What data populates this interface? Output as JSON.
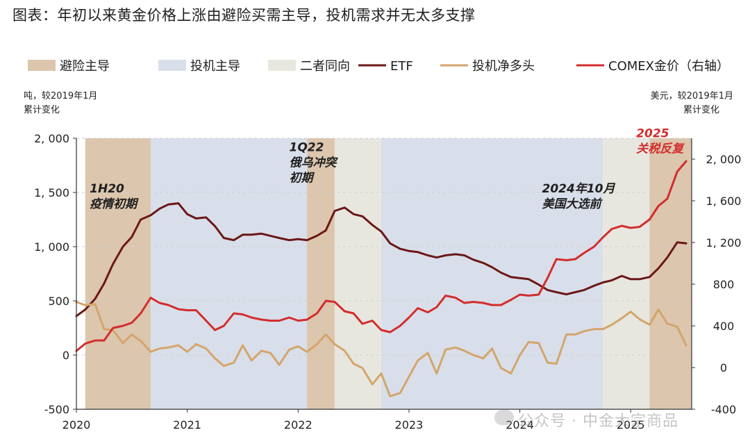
{
  "page_title": "图表：年初以来黄金价格上涨由避险买需主导，投机需求并无太多支撑",
  "watermark": "公众号 · 中金大宗商品",
  "colors": {
    "hedge_band": "#dcc6ad",
    "spec_band": "#d9dfea",
    "both_band": "#e8e7df",
    "etf": "#6b1717",
    "spec_net_long": "#d3a56c",
    "comex": "#d22d2d",
    "grid": "#cfcfcf",
    "axis": "#333333"
  },
  "chart_data": {
    "type": "line",
    "legend": {
      "position": "top",
      "items": [
        {
          "key": "hedge",
          "label": "避险主导",
          "kind": "band"
        },
        {
          "key": "spec",
          "label": "投机主导",
          "kind": "band"
        },
        {
          "key": "both",
          "label": "二者同向",
          "kind": "band"
        },
        {
          "key": "etf",
          "label": "ETF",
          "kind": "line"
        },
        {
          "key": "net_long",
          "label": "投机净多头",
          "kind": "line"
        },
        {
          "key": "comex",
          "label": "COMEX金价（右轴）",
          "kind": "line"
        }
      ]
    },
    "left_axis": {
      "label_line1": "吨，较2019年1月",
      "label_line2": "累计变化",
      "ylim": [
        -500,
        2000
      ],
      "ticks": [
        -500,
        0,
        500,
        1000,
        1500,
        2000
      ],
      "tick_labels": [
        "-500",
        "0",
        "500",
        "1, 000",
        "1, 500",
        "2, 000"
      ]
    },
    "right_axis": {
      "label_line1": "美元，较2019年1月",
      "label_line2": "累计变化",
      "ylim": [
        -400,
        2200
      ],
      "ticks": [
        -400,
        0,
        400,
        800,
        1200,
        1600,
        2000
      ],
      "tick_labels": [
        "-400",
        "0",
        "400",
        "800",
        "1, 200",
        "1, 600",
        "2, 000"
      ]
    },
    "x_axis": {
      "xlim": [
        2020.0,
        2025.55
      ],
      "ticks": [
        2020,
        2021,
        2022,
        2023,
        2024,
        2025
      ],
      "tick_labels": [
        "2020",
        "2021",
        "2022",
        "2023",
        "2024",
        "2025"
      ]
    },
    "grid": "horizontal dashed",
    "bands": [
      {
        "type": "hedge",
        "start": 2020.08,
        "end": 2020.67
      },
      {
        "type": "spec",
        "start": 2020.67,
        "end": 2022.08
      },
      {
        "type": "hedge",
        "start": 2022.08,
        "end": 2022.33
      },
      {
        "type": "both",
        "start": 2022.33,
        "end": 2022.75
      },
      {
        "type": "spec",
        "start": 2022.75,
        "end": 2024.75
      },
      {
        "type": "both",
        "start": 2024.75,
        "end": 2025.17
      },
      {
        "type": "hedge",
        "start": 2025.17,
        "end": 2025.55
      }
    ],
    "annotations": [
      {
        "lines": [
          "1H20",
          "疫情初期"
        ],
        "x": 2020.12,
        "y": 1500,
        "axis": "left",
        "color": "#1e1e1e"
      },
      {
        "lines": [
          "1Q22",
          "俄乌冲突",
          "初期"
        ],
        "x": 2021.92,
        "y": 1880,
        "axis": "left",
        "color": "#1e1e1e"
      },
      {
        "lines": [
          "2024年10月",
          "美国大选前"
        ],
        "x": 2024.2,
        "y": 1500,
        "axis": "left",
        "color": "#1e1e1e"
      },
      {
        "lines": [
          "2025",
          "关税反复"
        ],
        "x": 2025.05,
        "y": 2010,
        "axis": "left",
        "color": "#d22d2d"
      }
    ],
    "series": [
      {
        "name": "ETF",
        "axis": "left",
        "points": [
          [
            2020.0,
            360
          ],
          [
            2020.08,
            420
          ],
          [
            2020.17,
            520
          ],
          [
            2020.25,
            660
          ],
          [
            2020.33,
            840
          ],
          [
            2020.42,
            1000
          ],
          [
            2020.5,
            1090
          ],
          [
            2020.58,
            1250
          ],
          [
            2020.67,
            1290
          ],
          [
            2020.75,
            1350
          ],
          [
            2020.83,
            1390
          ],
          [
            2020.92,
            1400
          ],
          [
            2021.0,
            1300
          ],
          [
            2021.08,
            1260
          ],
          [
            2021.17,
            1270
          ],
          [
            2021.25,
            1190
          ],
          [
            2021.33,
            1080
          ],
          [
            2021.42,
            1060
          ],
          [
            2021.5,
            1110
          ],
          [
            2021.58,
            1110
          ],
          [
            2021.67,
            1120
          ],
          [
            2021.75,
            1100
          ],
          [
            2021.83,
            1080
          ],
          [
            2021.92,
            1060
          ],
          [
            2022.0,
            1070
          ],
          [
            2022.08,
            1060
          ],
          [
            2022.17,
            1100
          ],
          [
            2022.25,
            1150
          ],
          [
            2022.33,
            1330
          ],
          [
            2022.42,
            1360
          ],
          [
            2022.5,
            1300
          ],
          [
            2022.58,
            1280
          ],
          [
            2022.67,
            1200
          ],
          [
            2022.75,
            1140
          ],
          [
            2022.83,
            1030
          ],
          [
            2022.92,
            980
          ],
          [
            2023.0,
            960
          ],
          [
            2023.08,
            950
          ],
          [
            2023.17,
            920
          ],
          [
            2023.25,
            900
          ],
          [
            2023.33,
            920
          ],
          [
            2023.42,
            930
          ],
          [
            2023.5,
            920
          ],
          [
            2023.58,
            880
          ],
          [
            2023.67,
            850
          ],
          [
            2023.75,
            810
          ],
          [
            2023.83,
            760
          ],
          [
            2023.92,
            720
          ],
          [
            2024.0,
            710
          ],
          [
            2024.08,
            700
          ],
          [
            2024.17,
            650
          ],
          [
            2024.25,
            600
          ],
          [
            2024.33,
            580
          ],
          [
            2024.42,
            560
          ],
          [
            2024.5,
            580
          ],
          [
            2024.58,
            600
          ],
          [
            2024.67,
            640
          ],
          [
            2024.75,
            670
          ],
          [
            2024.83,
            690
          ],
          [
            2024.92,
            730
          ],
          [
            2025.0,
            700
          ],
          [
            2025.08,
            700
          ],
          [
            2025.17,
            720
          ],
          [
            2025.25,
            800
          ],
          [
            2025.33,
            900
          ],
          [
            2025.42,
            1040
          ],
          [
            2025.5,
            1030
          ]
        ]
      },
      {
        "name": "投机净多头",
        "axis": "left",
        "points": [
          [
            2020.0,
            490
          ],
          [
            2020.08,
            460
          ],
          [
            2020.17,
            470
          ],
          [
            2020.25,
            240
          ],
          [
            2020.33,
            230
          ],
          [
            2020.42,
            110
          ],
          [
            2020.5,
            190
          ],
          [
            2020.58,
            130
          ],
          [
            2020.67,
            30
          ],
          [
            2020.75,
            60
          ],
          [
            2020.83,
            70
          ],
          [
            2020.92,
            90
          ],
          [
            2021.0,
            30
          ],
          [
            2021.08,
            100
          ],
          [
            2021.17,
            60
          ],
          [
            2021.25,
            -30
          ],
          [
            2021.33,
            -100
          ],
          [
            2021.42,
            -70
          ],
          [
            2021.5,
            90
          ],
          [
            2021.58,
            -50
          ],
          [
            2021.67,
            40
          ],
          [
            2021.75,
            20
          ],
          [
            2021.83,
            -90
          ],
          [
            2021.92,
            50
          ],
          [
            2022.0,
            80
          ],
          [
            2022.08,
            30
          ],
          [
            2022.17,
            100
          ],
          [
            2022.25,
            190
          ],
          [
            2022.33,
            100
          ],
          [
            2022.42,
            40
          ],
          [
            2022.5,
            -80
          ],
          [
            2022.58,
            -120
          ],
          [
            2022.67,
            -270
          ],
          [
            2022.75,
            -170
          ],
          [
            2022.83,
            -380
          ],
          [
            2022.92,
            -350
          ],
          [
            2023.0,
            -200
          ],
          [
            2023.08,
            -50
          ],
          [
            2023.17,
            20
          ],
          [
            2023.25,
            -170
          ],
          [
            2023.33,
            50
          ],
          [
            2023.42,
            70
          ],
          [
            2023.5,
            40
          ],
          [
            2023.58,
            0
          ],
          [
            2023.67,
            -30
          ],
          [
            2023.75,
            60
          ],
          [
            2023.83,
            -120
          ],
          [
            2023.92,
            -170
          ],
          [
            2024.0,
            0
          ],
          [
            2024.08,
            120
          ],
          [
            2024.17,
            110
          ],
          [
            2024.25,
            -70
          ],
          [
            2024.33,
            -80
          ],
          [
            2024.42,
            190
          ],
          [
            2024.5,
            190
          ],
          [
            2024.58,
            220
          ],
          [
            2024.67,
            240
          ],
          [
            2024.75,
            240
          ],
          [
            2024.83,
            280
          ],
          [
            2024.92,
            340
          ],
          [
            2025.0,
            400
          ],
          [
            2025.08,
            330
          ],
          [
            2025.17,
            280
          ],
          [
            2025.25,
            420
          ],
          [
            2025.33,
            290
          ],
          [
            2025.42,
            260
          ],
          [
            2025.5,
            90
          ]
        ]
      },
      {
        "name": "COMEX金价（右轴）",
        "axis": "right",
        "points": [
          [
            2020.0,
            160
          ],
          [
            2020.08,
            230
          ],
          [
            2020.17,
            260
          ],
          [
            2020.25,
            260
          ],
          [
            2020.33,
            380
          ],
          [
            2020.42,
            400
          ],
          [
            2020.5,
            430
          ],
          [
            2020.58,
            520
          ],
          [
            2020.67,
            670
          ],
          [
            2020.75,
            620
          ],
          [
            2020.83,
            600
          ],
          [
            2020.92,
            560
          ],
          [
            2021.0,
            550
          ],
          [
            2021.08,
            550
          ],
          [
            2021.17,
            450
          ],
          [
            2021.25,
            360
          ],
          [
            2021.33,
            400
          ],
          [
            2021.42,
            520
          ],
          [
            2021.5,
            510
          ],
          [
            2021.58,
            480
          ],
          [
            2021.67,
            460
          ],
          [
            2021.75,
            450
          ],
          [
            2021.83,
            450
          ],
          [
            2021.92,
            480
          ],
          [
            2022.0,
            450
          ],
          [
            2022.08,
            460
          ],
          [
            2022.17,
            520
          ],
          [
            2022.25,
            640
          ],
          [
            2022.33,
            630
          ],
          [
            2022.42,
            540
          ],
          [
            2022.5,
            520
          ],
          [
            2022.58,
            420
          ],
          [
            2022.67,
            450
          ],
          [
            2022.75,
            360
          ],
          [
            2022.83,
            340
          ],
          [
            2022.92,
            400
          ],
          [
            2023.0,
            480
          ],
          [
            2023.08,
            570
          ],
          [
            2023.17,
            530
          ],
          [
            2023.25,
            580
          ],
          [
            2023.33,
            690
          ],
          [
            2023.42,
            670
          ],
          [
            2023.5,
            620
          ],
          [
            2023.58,
            630
          ],
          [
            2023.67,
            620
          ],
          [
            2023.75,
            600
          ],
          [
            2023.83,
            600
          ],
          [
            2023.92,
            650
          ],
          [
            2024.0,
            700
          ],
          [
            2024.08,
            690
          ],
          [
            2024.17,
            700
          ],
          [
            2024.25,
            860
          ],
          [
            2024.33,
            1040
          ],
          [
            2024.42,
            1030
          ],
          [
            2024.5,
            1040
          ],
          [
            2024.58,
            1100
          ],
          [
            2024.67,
            1160
          ],
          [
            2024.75,
            1250
          ],
          [
            2024.83,
            1330
          ],
          [
            2024.92,
            1360
          ],
          [
            2025.0,
            1340
          ],
          [
            2025.08,
            1350
          ],
          [
            2025.17,
            1420
          ],
          [
            2025.25,
            1550
          ],
          [
            2025.33,
            1620
          ],
          [
            2025.42,
            1880
          ],
          [
            2025.5,
            1980
          ]
        ]
      }
    ]
  }
}
